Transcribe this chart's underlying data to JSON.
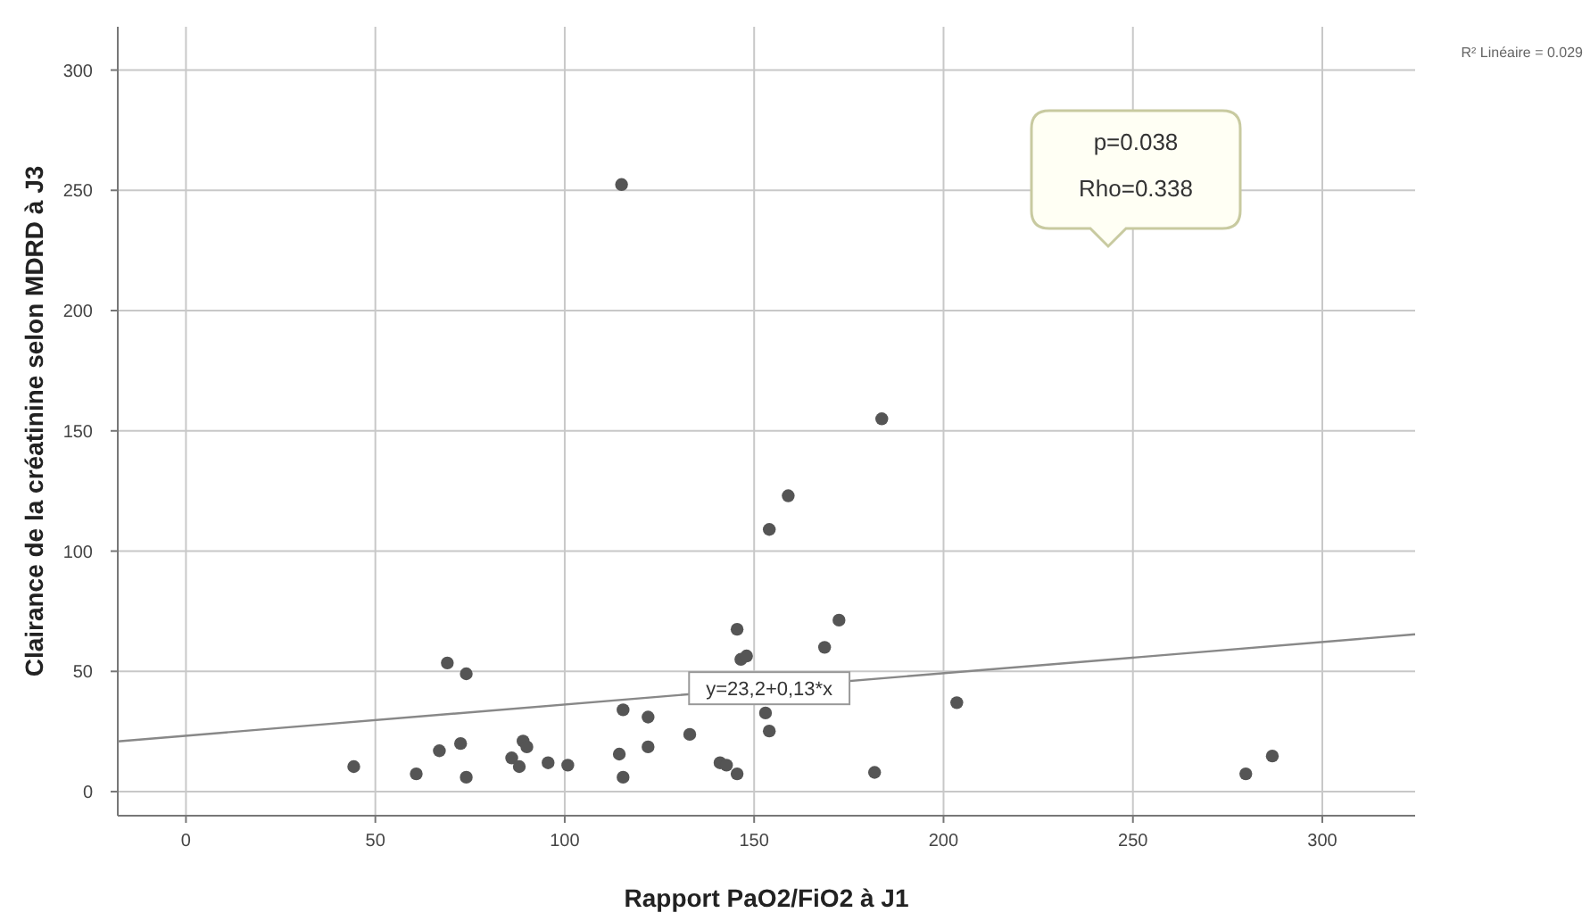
{
  "chart_data": {
    "type": "scatter",
    "xlabel": "Rapport PaO2/FiO2 à J1",
    "ylabel": "Clairance de la créatinine selon MDRD à J3",
    "xlim": [
      -18,
      324.5
    ],
    "ylim": [
      -10,
      318
    ],
    "xticks": [
      0,
      50,
      100,
      150,
      200,
      250,
      300
    ],
    "yticks": [
      0,
      50,
      100,
      150,
      200,
      250,
      300
    ],
    "grid": true,
    "marker": "circle",
    "series": [
      {
        "color": "#555555",
        "x": [
          44.3,
          60.8,
          66.9,
          69,
          72.5,
          74,
          74,
          86,
          88,
          89,
          90,
          95.6,
          100.8,
          114.4,
          115.4,
          115.4,
          115,
          122,
          122,
          133,
          141,
          142.7,
          145.5,
          145.5,
          146.5,
          148,
          153,
          154,
          154,
          159,
          168.6,
          172.4,
          181.8,
          183.7,
          203.5,
          279.8,
          286.8
        ],
        "values": [
          10.4,
          7.4,
          17,
          53.5,
          20,
          49,
          6,
          14,
          10.4,
          21,
          18.6,
          12,
          11,
          15.6,
          34,
          6,
          252.4,
          31,
          18.6,
          23.8,
          12,
          11,
          7.4,
          67.5,
          55,
          56.4,
          32.7,
          25.2,
          109,
          123,
          60,
          71.3,
          8,
          155,
          37,
          7.4,
          14.8
        ]
      },
      {
        "type": "line",
        "color": "#888888",
        "marker": "none",
        "x": [
          -18,
          324.5
        ],
        "values": [
          20.9,
          65.4
        ]
      }
    ],
    "annotations": [
      {
        "text": "y=23,2+0,13*x",
        "x": 154,
        "y": 43
      },
      "p=0.038",
      "Rho=0.338",
      "R² Linéaire = 0.029"
    ]
  }
}
